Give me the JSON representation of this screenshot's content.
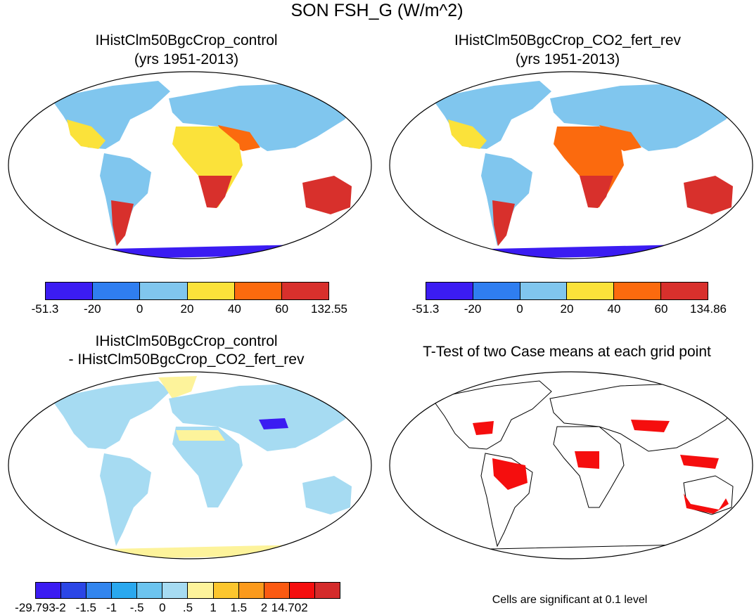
{
  "title": "SON FSH_G (W/m^2)",
  "panels": [
    {
      "title": "IHistClm50BgcCrop_control",
      "subtitle": "(yrs 1951-2013)"
    },
    {
      "title": "IHistClm50BgcCrop_CO2_fert_rev",
      "subtitle": "(yrs 1951-2013)"
    },
    {
      "title": "IHistClm50BgcCrop_control",
      "subtitle": "- IHistClm50BgcCrop_CO2_fert_rev"
    },
    {
      "title": "T-Test of two Case means at each grid point",
      "subtitle": ""
    }
  ],
  "colorbars": [
    {
      "labels": [
        "-51.3",
        "-20",
        "0",
        "20",
        "40",
        "60",
        "132.55"
      ],
      "colors": [
        "#3b1cf2",
        "#2f7ef0",
        "#80c6ee",
        "#fbe23a",
        "#fb6a0e",
        "#d8302c"
      ]
    },
    {
      "labels": [
        "-51.3",
        "-20",
        "0",
        "20",
        "40",
        "60",
        "134.86"
      ],
      "colors": [
        "#3b1cf2",
        "#2f7ef0",
        "#80c6ee",
        "#fbe23a",
        "#fb6a0e",
        "#d8302c"
      ]
    },
    {
      "labels": [
        "-29.793",
        "-2",
        "-1.5",
        "-1",
        "-.5",
        "0",
        ".5",
        "1",
        "1.5",
        "2",
        "14.702"
      ],
      "colors": [
        "#3b1cf2",
        "#2b46e6",
        "#3285ee",
        "#2aa8ef",
        "#6cc4ef",
        "#a6dbf2",
        "#fdf39b",
        "#fcc62e",
        "#fb9a1c",
        "#fb5a12",
        "#f50e0e",
        "#d42b2b"
      ]
    }
  ],
  "footnote": "Cells are significant at 0.1 level"
}
